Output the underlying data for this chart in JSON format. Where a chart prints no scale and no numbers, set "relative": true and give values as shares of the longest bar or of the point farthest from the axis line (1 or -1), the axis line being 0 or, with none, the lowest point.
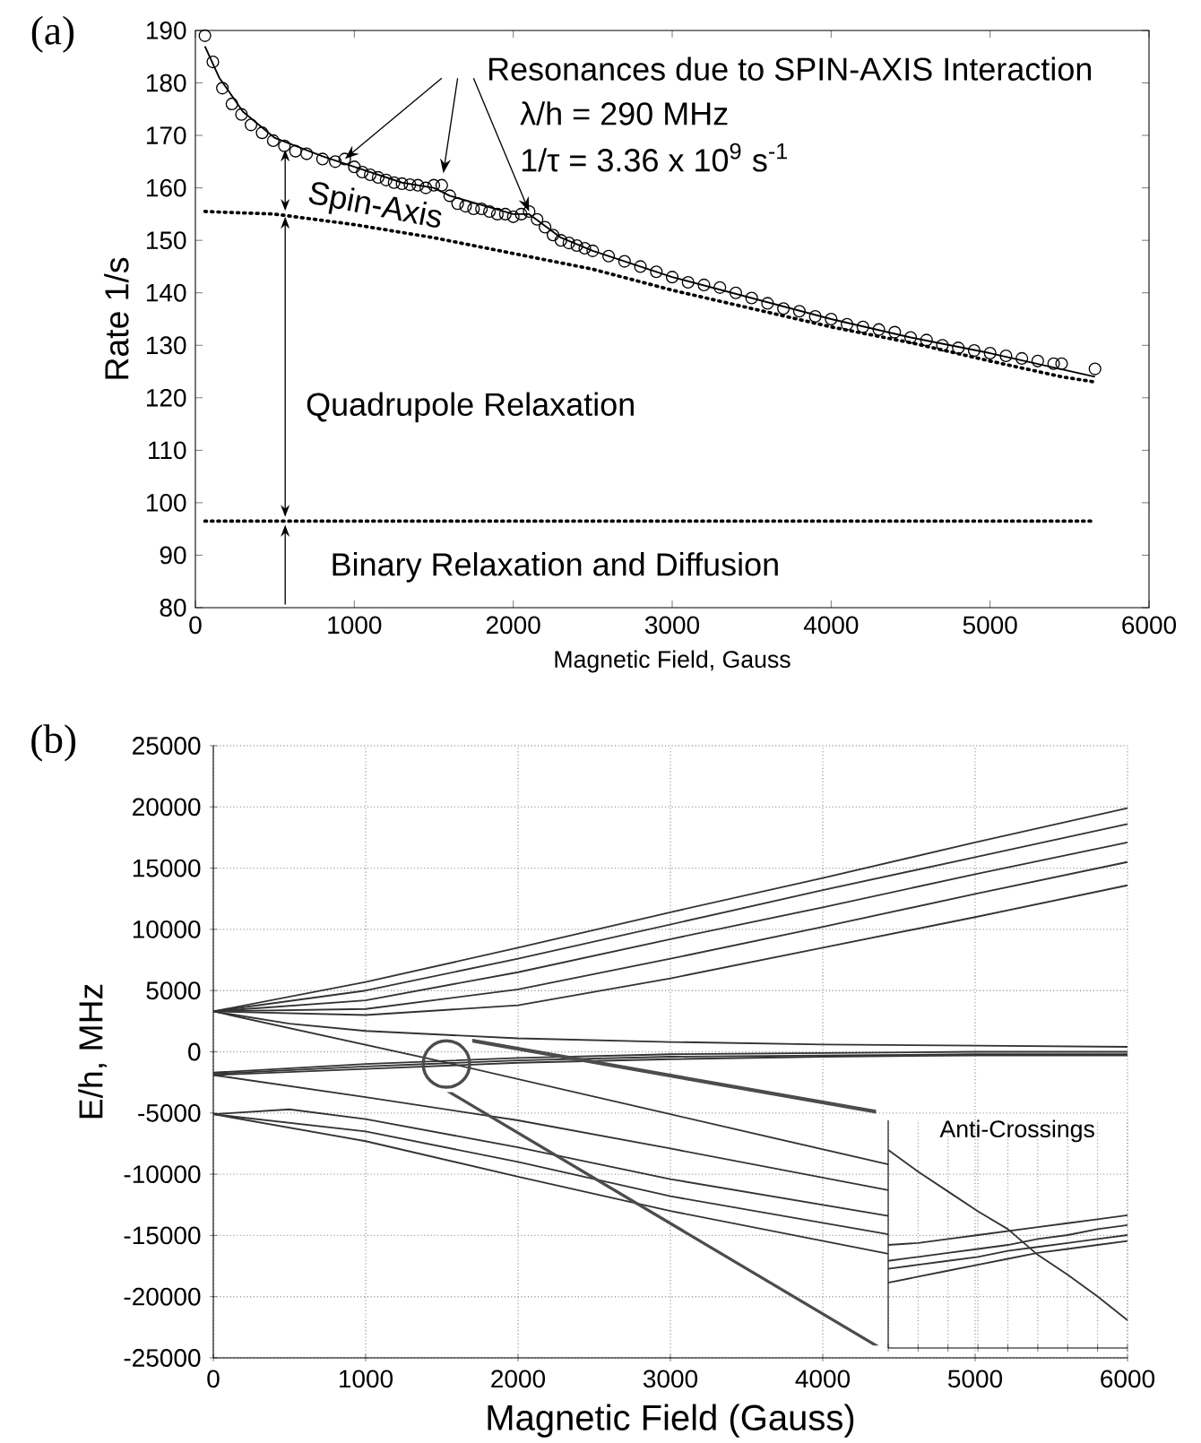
{
  "chart_data": [
    {
      "type": "scatter",
      "title": "(a)",
      "xlabel": "Magnetic Field, Gauss",
      "ylabel": "Rate 1/s",
      "xlim": [
        0,
        6000
      ],
      "ylim": [
        80,
        190
      ],
      "xticks": [
        0,
        1000,
        2000,
        3000,
        4000,
        5000,
        6000
      ],
      "yticks": [
        80,
        90,
        100,
        110,
        120,
        130,
        140,
        150,
        160,
        170,
        180,
        190
      ],
      "annotations": [
        {
          "text": "Resonances due to SPIN-AXIS Interaction",
          "x": 2100,
          "y": 155.5
        },
        "λ/h = 290 MHz",
        "1/τ = 3.36 x 10$^{9}$ s$^{-1}$",
        "Spin-Axis",
        "Quadrupole Relaxation",
        "Binary Relaxation and Diffusion"
      ],
      "series": [
        {
          "type": "scatter",
          "marker": "circle",
          "color": "#000000",
          "x": [
            60,
            110,
            170,
            230,
            290,
            350,
            420,
            490,
            560,
            630,
            700,
            800,
            880,
            940,
            1000,
            1050,
            1100,
            1150,
            1200,
            1250,
            1300,
            1350,
            1400,
            1450,
            1500,
            1550,
            1600,
            1650,
            1700,
            1750,
            1800,
            1850,
            1900,
            1950,
            2000,
            2050,
            2100,
            2150,
            2200,
            2250,
            2300,
            2350,
            2400,
            2450,
            2500,
            2600,
            2700,
            2800,
            2900,
            3000,
            3100,
            3200,
            3300,
            3400,
            3500,
            3600,
            3700,
            3800,
            3900,
            4000,
            4100,
            4200,
            4300,
            4400,
            4500,
            4600,
            4700,
            4800,
            4900,
            5000,
            5100,
            5200,
            5300,
            5400,
            5450,
            5660
          ],
          "values": [
            189,
            184,
            179,
            176,
            174,
            172,
            170.5,
            169,
            168,
            167,
            166.5,
            165.5,
            165,
            165.5,
            164,
            163,
            162.5,
            162,
            161.5,
            161,
            160.8,
            160.6,
            160.5,
            160,
            160.5,
            160.5,
            158.5,
            157,
            156.5,
            156,
            156,
            155.5,
            155,
            155,
            154.5,
            155,
            155.5,
            154,
            152.5,
            151,
            150,
            149.5,
            149,
            148.5,
            148,
            147,
            146,
            145,
            144,
            143,
            142,
            141.5,
            141,
            140,
            139,
            138,
            137,
            136.5,
            135.5,
            135,
            134,
            133.5,
            133,
            132.5,
            131.5,
            131,
            130,
            129.5,
            129,
            128.5,
            128,
            127.5,
            127,
            126.5,
            126.5,
            125.5
          ]
        },
        {
          "type": "line",
          "line_style": "solid",
          "color": "#000000",
          "x": [
            60,
            150,
            300,
            500,
            800,
            1000,
            1300,
            1500,
            1600,
            2000,
            2100,
            2300,
            2500,
            3000,
            3500,
            4000,
            4500,
            5000,
            5660
          ],
          "values": [
            187,
            181,
            174.5,
            169.5,
            166,
            164,
            161,
            160,
            158.5,
            155,
            155,
            150.5,
            148,
            143,
            139,
            135,
            131.5,
            128.5,
            124
          ]
        },
        {
          "type": "line",
          "line_style": "dotted",
          "color": "#000000",
          "x": [
            60,
            500,
            1000,
            1500,
            2000,
            2500,
            3000,
            3500,
            4000,
            4500,
            5000,
            5450,
            5660
          ],
          "values": [
            155.5,
            155,
            153,
            150.5,
            147.5,
            144.5,
            140.5,
            137,
            133.5,
            130.5,
            127,
            124,
            123
          ]
        },
        {
          "type": "line",
          "line_style": "dotted",
          "color": "#000000",
          "x": [
            60,
            5660
          ],
          "values": [
            96.5,
            96.5
          ]
        }
      ]
    },
    {
      "type": "line",
      "title": "(b)",
      "xlabel": "Magnetic Field (Gauss)",
      "ylabel": "E/h, MHz",
      "grid": true,
      "xlim": [
        0,
        6000
      ],
      "ylim": [
        -25000,
        25000
      ],
      "xticks": [
        0,
        1000,
        2000,
        3000,
        4000,
        5000,
        6000
      ],
      "yticks": [
        -25000,
        -20000,
        -15000,
        -10000,
        -5000,
        0,
        5000,
        10000,
        15000,
        20000,
        25000
      ],
      "series": [
        {
          "color": "#333333",
          "x": [
            0,
            1000,
            2000,
            3000,
            4000,
            5000,
            6000
          ],
          "values": [
            3300,
            5700,
            8500,
            11400,
            14200,
            17100,
            19900
          ]
        },
        {
          "color": "#333333",
          "x": [
            0,
            1000,
            2000,
            3000,
            4000,
            5000,
            6000
          ],
          "values": [
            3300,
            5000,
            7600,
            10400,
            13200,
            15900,
            18600
          ]
        },
        {
          "color": "#333333",
          "x": [
            0,
            1000,
            2000,
            3000,
            4000,
            5000,
            6000
          ],
          "values": [
            3300,
            4200,
            6500,
            9200,
            11800,
            14500,
            17100
          ]
        },
        {
          "color": "#333333",
          "x": [
            0,
            1000,
            2000,
            3000,
            4000,
            5000,
            6000
          ],
          "values": [
            3300,
            3500,
            5100,
            7600,
            10200,
            12900,
            15500
          ]
        },
        {
          "color": "#333333",
          "x": [
            0,
            1000,
            2000,
            3000,
            4000,
            5000,
            6000
          ],
          "values": [
            3300,
            3000,
            3800,
            6000,
            8500,
            11000,
            13600
          ]
        },
        {
          "color": "#333333",
          "x": [
            0,
            500,
            1000,
            2000,
            3000,
            4000,
            5000,
            6000
          ],
          "values": [
            3300,
            2300,
            1700,
            1100,
            800,
            600,
            500,
            400
          ]
        },
        {
          "color": "#333333",
          "x": [
            0,
            1000,
            2000,
            3000,
            4000,
            5000,
            6000
          ],
          "values": [
            -1700,
            -1000,
            -500,
            -200,
            -100,
            0,
            0
          ]
        },
        {
          "color": "#333333",
          "x": [
            0,
            1000,
            2000,
            3000,
            4000,
            5000,
            6000
          ],
          "values": [
            -1800,
            -1200,
            -700,
            -400,
            -300,
            -200,
            -200
          ]
        },
        {
          "color": "#333333",
          "x": [
            0,
            1000,
            2000,
            3000,
            4000,
            5000,
            6000
          ],
          "values": [
            -1900,
            -1400,
            -900,
            -600,
            -400,
            -300,
            -300
          ]
        },
        {
          "color": "#333333",
          "x": [
            0,
            1500,
            3000,
            4430
          ],
          "values": [
            3300,
            -800,
            -5100,
            -9200
          ]
        },
        {
          "color": "#333333",
          "x": [
            0,
            1000,
            2000,
            3000,
            4430
          ],
          "values": [
            -1900,
            -3700,
            -5600,
            -7900,
            -11300
          ]
        },
        {
          "color": "#333333",
          "x": [
            0,
            500,
            1000,
            2000,
            3000,
            4430
          ],
          "values": [
            -5100,
            -4700,
            -5500,
            -7800,
            -10400,
            -13400
          ]
        },
        {
          "color": "#333333",
          "x": [
            0,
            1000,
            2000,
            3000,
            4430
          ],
          "values": [
            -5100,
            -6500,
            -9000,
            -11800,
            -14900
          ]
        },
        {
          "color": "#333333",
          "x": [
            0,
            1000,
            2000,
            3000,
            4430
          ],
          "values": [
            -5100,
            -7300,
            -10200,
            -13000,
            -16500
          ]
        }
      ]
    },
    {
      "type": "line",
      "title": "Anti-Crossings",
      "relative": true,
      "grid": "x",
      "categories": [
        null,
        null,
        null,
        null,
        null,
        null,
        null,
        null,
        null
      ],
      "series": [
        {
          "color": "#333333",
          "values": [
            1.0,
            0.89,
            0.79,
            0.69,
            0.6,
            0.47,
            0.37,
            0.26,
            0.14
          ]
        },
        {
          "color": "#333333",
          "values": [
            0.52,
            0.53,
            0.55,
            0.57,
            0.59,
            0.61,
            0.63,
            0.65,
            0.67
          ]
        },
        {
          "color": "#333333",
          "values": [
            0.44,
            0.46,
            0.48,
            0.5,
            0.52,
            0.55,
            0.57,
            0.6,
            0.62
          ]
        },
        {
          "color": "#333333",
          "values": [
            0.4,
            0.42,
            0.44,
            0.46,
            0.49,
            0.51,
            0.53,
            0.55,
            0.57
          ]
        },
        {
          "color": "#333333",
          "values": [
            0.33,
            0.36,
            0.39,
            0.42,
            0.45,
            0.48,
            0.5,
            0.52,
            0.54
          ]
        }
      ]
    }
  ]
}
